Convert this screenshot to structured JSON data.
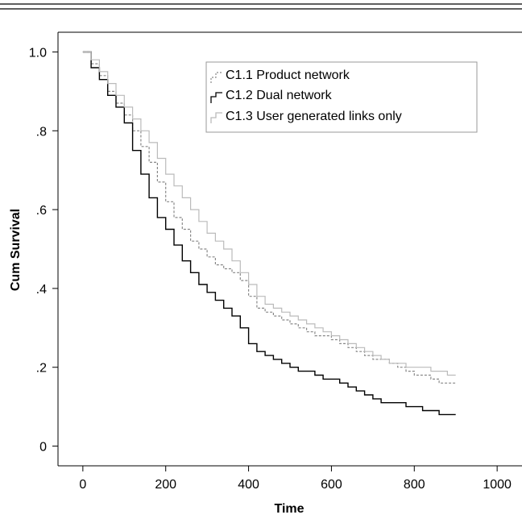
{
  "chart_data": {
    "type": "line",
    "step": true,
    "xlabel": "Time",
    "ylabel": "Cum Survival",
    "xlim": [
      -60,
      1060
    ],
    "ylim": [
      -0.05,
      1.05
    ],
    "x_ticks": [
      0,
      200,
      400,
      600,
      800,
      1000
    ],
    "x_tick_labels": [
      "0",
      "200",
      "400",
      "600",
      "800",
      "1000"
    ],
    "y_ticks": [
      0,
      0.2,
      0.4,
      0.6,
      0.8,
      1.0
    ],
    "y_tick_labels": [
      "0",
      ".2",
      ".4",
      ".6",
      ".8",
      "1.0"
    ],
    "grid": false,
    "legend_position": "top-right",
    "series": [
      {
        "name": "C1.1 Product network",
        "color": "#888888",
        "dash": true,
        "x": [
          0,
          20,
          40,
          60,
          80,
          100,
          120,
          140,
          160,
          180,
          200,
          220,
          240,
          260,
          280,
          300,
          320,
          340,
          360,
          380,
          400,
          420,
          440,
          460,
          480,
          500,
          520,
          540,
          560,
          580,
          600,
          620,
          640,
          660,
          680,
          700,
          720,
          740,
          760,
          780,
          800,
          820,
          840,
          860,
          880,
          900
        ],
        "y": [
          1.0,
          0.97,
          0.94,
          0.9,
          0.87,
          0.84,
          0.8,
          0.76,
          0.72,
          0.67,
          0.62,
          0.58,
          0.55,
          0.52,
          0.5,
          0.48,
          0.46,
          0.45,
          0.44,
          0.42,
          0.38,
          0.35,
          0.34,
          0.33,
          0.32,
          0.31,
          0.3,
          0.29,
          0.28,
          0.28,
          0.27,
          0.26,
          0.25,
          0.24,
          0.23,
          0.22,
          0.22,
          0.21,
          0.2,
          0.19,
          0.18,
          0.18,
          0.17,
          0.16,
          0.16,
          0.16
        ]
      },
      {
        "name": "C1.2 Dual network",
        "color": "#000000",
        "dash": false,
        "x": [
          0,
          20,
          40,
          60,
          80,
          100,
          120,
          140,
          160,
          180,
          200,
          220,
          240,
          260,
          280,
          300,
          320,
          340,
          360,
          380,
          400,
          420,
          440,
          460,
          480,
          500,
          520,
          540,
          560,
          580,
          600,
          620,
          640,
          660,
          680,
          700,
          720,
          740,
          760,
          780,
          800,
          820,
          840,
          860,
          880,
          900
        ],
        "y": [
          1.0,
          0.96,
          0.93,
          0.89,
          0.86,
          0.82,
          0.75,
          0.69,
          0.63,
          0.58,
          0.55,
          0.51,
          0.47,
          0.44,
          0.41,
          0.39,
          0.37,
          0.35,
          0.33,
          0.3,
          0.26,
          0.24,
          0.23,
          0.22,
          0.21,
          0.2,
          0.19,
          0.19,
          0.18,
          0.17,
          0.17,
          0.16,
          0.15,
          0.14,
          0.13,
          0.12,
          0.11,
          0.11,
          0.11,
          0.1,
          0.1,
          0.09,
          0.09,
          0.08,
          0.08,
          0.08
        ]
      },
      {
        "name": "C1.3 User generated links only",
        "color": "#bbbbbb",
        "dash": false,
        "x": [
          0,
          20,
          40,
          60,
          80,
          100,
          120,
          140,
          160,
          180,
          200,
          220,
          240,
          260,
          280,
          300,
          320,
          340,
          360,
          380,
          400,
          420,
          440,
          460,
          480,
          500,
          520,
          540,
          560,
          580,
          600,
          620,
          640,
          660,
          680,
          700,
          720,
          740,
          760,
          780,
          800,
          820,
          840,
          860,
          880,
          900
        ],
        "y": [
          1.0,
          0.98,
          0.95,
          0.92,
          0.89,
          0.86,
          0.83,
          0.8,
          0.77,
          0.73,
          0.69,
          0.66,
          0.63,
          0.6,
          0.57,
          0.54,
          0.52,
          0.5,
          0.47,
          0.44,
          0.41,
          0.38,
          0.36,
          0.35,
          0.34,
          0.33,
          0.32,
          0.31,
          0.3,
          0.29,
          0.28,
          0.27,
          0.26,
          0.25,
          0.24,
          0.23,
          0.22,
          0.21,
          0.21,
          0.2,
          0.2,
          0.2,
          0.19,
          0.19,
          0.18,
          0.18
        ]
      }
    ]
  }
}
